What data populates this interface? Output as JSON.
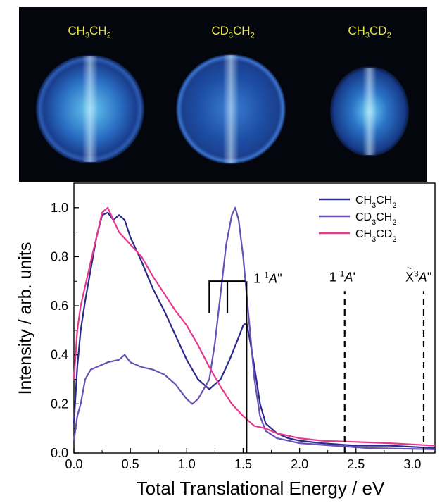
{
  "image_panel": {
    "labels": [
      {
        "text": "CH",
        "sub1": "3",
        "mid": "CH",
        "sub2": "2"
      },
      {
        "text": "CD",
        "sub1": "3",
        "mid": "CH",
        "sub2": "2"
      },
      {
        "text": "CH",
        "sub1": "3",
        "mid": "CD",
        "sub2": "2"
      }
    ]
  },
  "chart_data": {
    "type": "line",
    "xlabel": "Total Translational Energy / eV",
    "ylabel": "Intensity / arb. units",
    "xlim": [
      0.0,
      3.2
    ],
    "ylim": [
      0.0,
      1.1
    ],
    "x_ticks": [
      "0.0",
      "0.5",
      "1.0",
      "1.5",
      "2.0",
      "2.5",
      "3.0"
    ],
    "y_ticks": [
      "0.0",
      "0.2",
      "0.4",
      "0.6",
      "0.8",
      "1.0"
    ],
    "x_tick_values": [
      0.0,
      0.5,
      1.0,
      1.5,
      2.0,
      2.5,
      3.0
    ],
    "y_tick_values": [
      0.0,
      0.2,
      0.4,
      0.6,
      0.8,
      1.0
    ],
    "legend_position": "top-right",
    "series": [
      {
        "name": "CH3CH2",
        "name_parts": [
          "CH",
          "3",
          "CH",
          "2"
        ],
        "color": "#2b2a8c",
        "points": [
          [
            0.0,
            0.12
          ],
          [
            0.03,
            0.35
          ],
          [
            0.06,
            0.5
          ],
          [
            0.1,
            0.62
          ],
          [
            0.15,
            0.75
          ],
          [
            0.2,
            0.88
          ],
          [
            0.25,
            0.97
          ],
          [
            0.3,
            0.98
          ],
          [
            0.35,
            0.95
          ],
          [
            0.4,
            0.97
          ],
          [
            0.45,
            0.95
          ],
          [
            0.5,
            0.88
          ],
          [
            0.6,
            0.78
          ],
          [
            0.7,
            0.67
          ],
          [
            0.8,
            0.58
          ],
          [
            0.9,
            0.48
          ],
          [
            1.0,
            0.38
          ],
          [
            1.1,
            0.3
          ],
          [
            1.2,
            0.26
          ],
          [
            1.3,
            0.3
          ],
          [
            1.38,
            0.38
          ],
          [
            1.45,
            0.46
          ],
          [
            1.5,
            0.52
          ],
          [
            1.53,
            0.53
          ],
          [
            1.56,
            0.46
          ],
          [
            1.6,
            0.35
          ],
          [
            1.65,
            0.2
          ],
          [
            1.7,
            0.12
          ],
          [
            1.8,
            0.08
          ],
          [
            1.9,
            0.06
          ],
          [
            2.0,
            0.05
          ],
          [
            2.2,
            0.04
          ],
          [
            2.5,
            0.03
          ],
          [
            2.8,
            0.03
          ],
          [
            3.2,
            0.02
          ]
        ]
      },
      {
        "name": "CD3CH2",
        "name_parts": [
          "CD",
          "3",
          "CH",
          "2"
        ],
        "color": "#6a4fb5",
        "points": [
          [
            0.0,
            0.05
          ],
          [
            0.03,
            0.15
          ],
          [
            0.06,
            0.2
          ],
          [
            0.1,
            0.3
          ],
          [
            0.15,
            0.34
          ],
          [
            0.2,
            0.35
          ],
          [
            0.3,
            0.37
          ],
          [
            0.4,
            0.38
          ],
          [
            0.45,
            0.4
          ],
          [
            0.5,
            0.37
          ],
          [
            0.6,
            0.35
          ],
          [
            0.7,
            0.34
          ],
          [
            0.8,
            0.32
          ],
          [
            0.9,
            0.28
          ],
          [
            1.0,
            0.22
          ],
          [
            1.05,
            0.2
          ],
          [
            1.1,
            0.22
          ],
          [
            1.2,
            0.3
          ],
          [
            1.25,
            0.45
          ],
          [
            1.3,
            0.65
          ],
          [
            1.35,
            0.85
          ],
          [
            1.4,
            0.97
          ],
          [
            1.43,
            1.0
          ],
          [
            1.46,
            0.95
          ],
          [
            1.5,
            0.8
          ],
          [
            1.55,
            0.55
          ],
          [
            1.6,
            0.3
          ],
          [
            1.65,
            0.15
          ],
          [
            1.7,
            0.09
          ],
          [
            1.8,
            0.06
          ],
          [
            2.0,
            0.04
          ],
          [
            2.3,
            0.03
          ],
          [
            2.6,
            0.02
          ],
          [
            3.2,
            0.015
          ]
        ]
      },
      {
        "name": "CH3CD2",
        "name_parts": [
          "CH",
          "3",
          "CD",
          "2"
        ],
        "color": "#e8388e",
        "points": [
          [
            0.0,
            0.3
          ],
          [
            0.03,
            0.5
          ],
          [
            0.06,
            0.6
          ],
          [
            0.1,
            0.68
          ],
          [
            0.15,
            0.78
          ],
          [
            0.2,
            0.88
          ],
          [
            0.25,
            0.98
          ],
          [
            0.3,
            1.0
          ],
          [
            0.35,
            0.95
          ],
          [
            0.4,
            0.9
          ],
          [
            0.5,
            0.85
          ],
          [
            0.6,
            0.8
          ],
          [
            0.7,
            0.72
          ],
          [
            0.8,
            0.65
          ],
          [
            0.9,
            0.58
          ],
          [
            1.0,
            0.52
          ],
          [
            1.1,
            0.44
          ],
          [
            1.2,
            0.35
          ],
          [
            1.3,
            0.27
          ],
          [
            1.4,
            0.2
          ],
          [
            1.5,
            0.15
          ],
          [
            1.6,
            0.11
          ],
          [
            1.7,
            0.1
          ],
          [
            1.8,
            0.08
          ],
          [
            2.0,
            0.06
          ],
          [
            2.2,
            0.05
          ],
          [
            2.5,
            0.045
          ],
          [
            2.8,
            0.04
          ],
          [
            3.0,
            0.035
          ],
          [
            3.2,
            0.03
          ]
        ]
      }
    ],
    "annotations": [
      {
        "label_parts": [
          "1 ",
          "1",
          "A",
          "''"
        ],
        "x": 1.53,
        "style": "solid"
      },
      {
        "label_parts": [
          "1 ",
          "1",
          "A",
          "'"
        ],
        "x": 2.4,
        "style": "dashed"
      },
      {
        "label_parts": [
          "X",
          "3",
          "A",
          "''"
        ],
        "x": 3.1,
        "style": "dashed"
      }
    ],
    "bracket": {
      "x_left": 1.2,
      "x_mid": 1.36,
      "x_right": 1.52,
      "y_top": 0.7,
      "y_bottom": 0.57
    }
  }
}
